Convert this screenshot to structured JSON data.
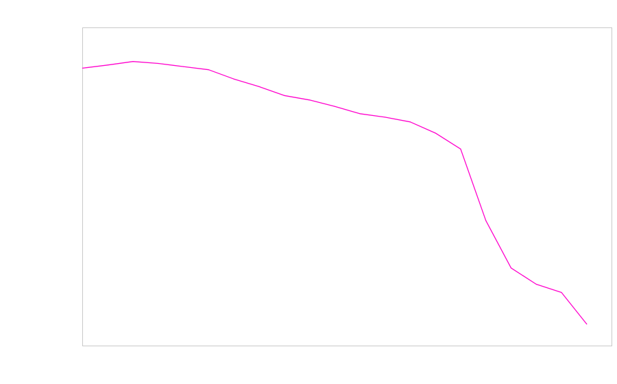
{
  "chart_data": {
    "type": "line",
    "title": "",
    "xlabel": "",
    "ylabel": "",
    "grid": false,
    "legend": "none",
    "xlim": [
      0,
      21
    ],
    "ylim": [
      0,
      100
    ],
    "x": [
      0,
      1,
      2,
      3,
      4,
      5,
      6,
      7,
      8,
      9,
      10,
      11,
      12,
      13,
      14,
      15,
      16,
      17,
      18,
      19,
      20
    ],
    "series": [
      {
        "color": "#ff00cc",
        "values": [
          87.3,
          88.3,
          89.4,
          88.8,
          87.8,
          86.8,
          83.9,
          81.5,
          78.7,
          77.3,
          75.3,
          73.0,
          71.9,
          70.4,
          66.9,
          61.9,
          39.4,
          24.5,
          19.4,
          16.8,
          6.9
        ]
      }
    ],
    "plot_border_color": "#c8c8c8"
  }
}
